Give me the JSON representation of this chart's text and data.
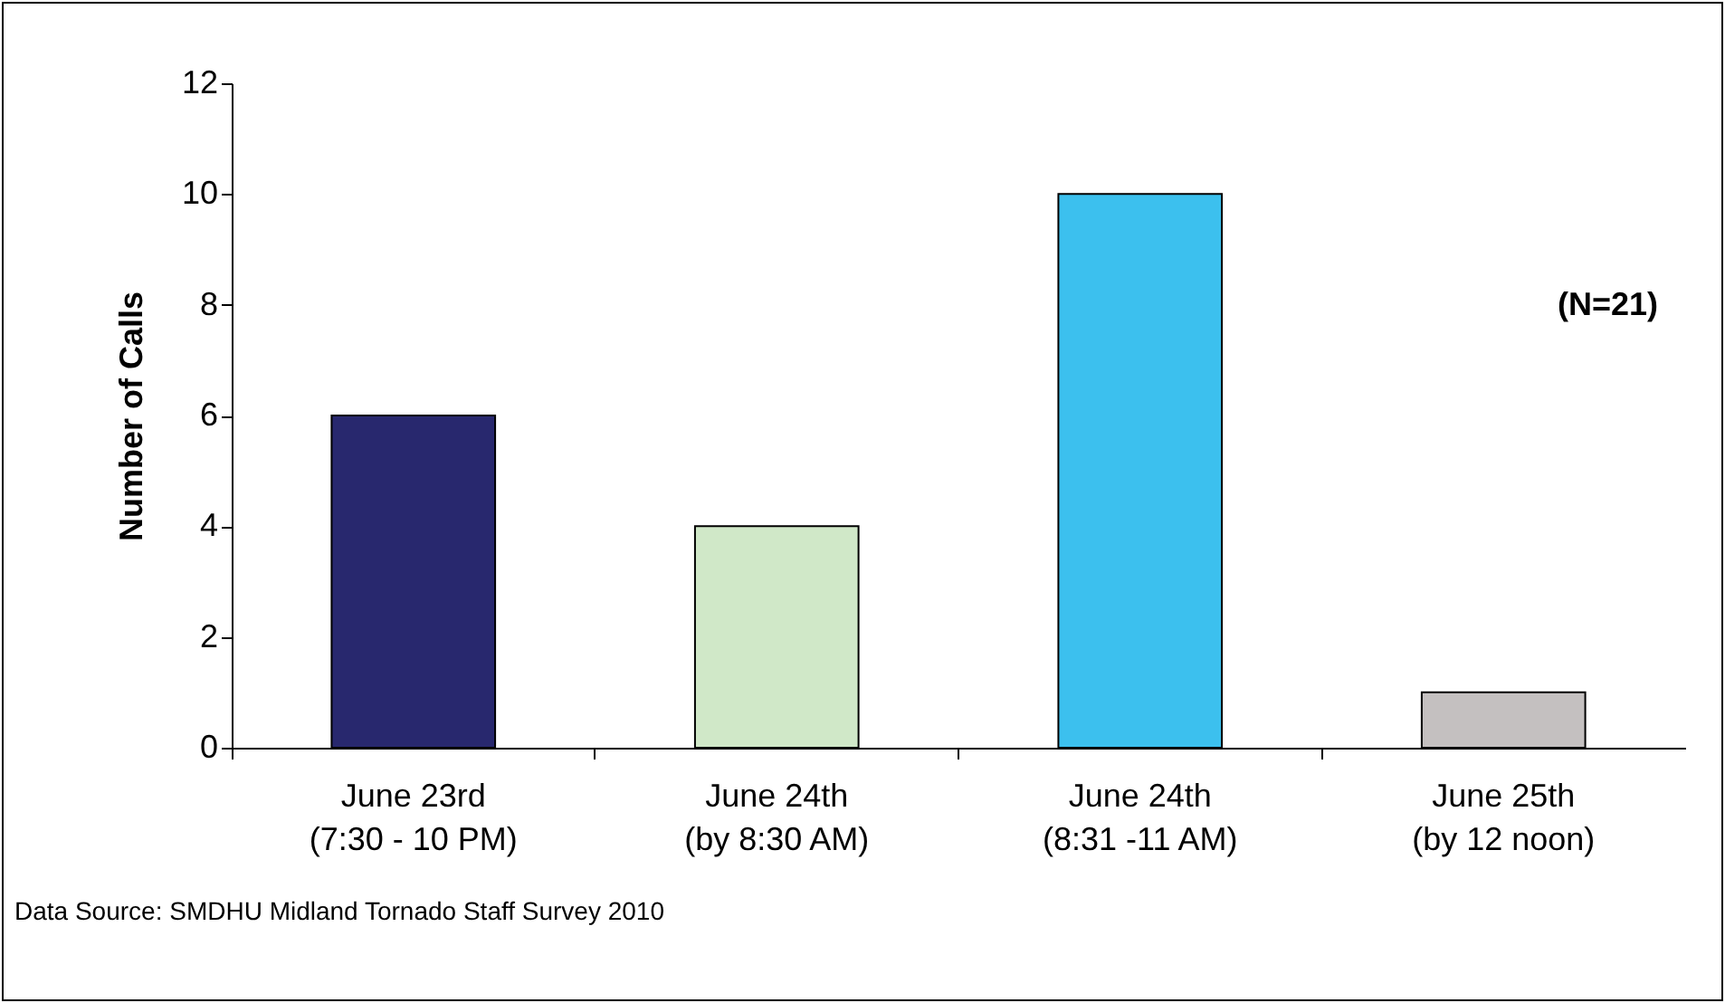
{
  "chart_data": {
    "type": "bar",
    "ylabel": "Number of Calls",
    "categories": [
      "June 23rd\n(7:30 - 10 PM)",
      "June 24th\n(by 8:30 AM)",
      "June 24th\n(8:31 -11 AM)",
      "June 25th\n(by 12 noon)"
    ],
    "values": [
      6,
      4,
      10,
      1
    ],
    "colors": [
      "#28286e",
      "#d0e8c8",
      "#3cc0ee",
      "#c4c0c0"
    ],
    "ylim": [
      0,
      12
    ],
    "yticks": [
      0,
      2,
      4,
      6,
      8,
      10,
      12
    ],
    "grid": false,
    "annotations": [
      "(N=21)",
      "Data Source: SMDHU Midland Tornado Staff Survey 2010"
    ]
  }
}
